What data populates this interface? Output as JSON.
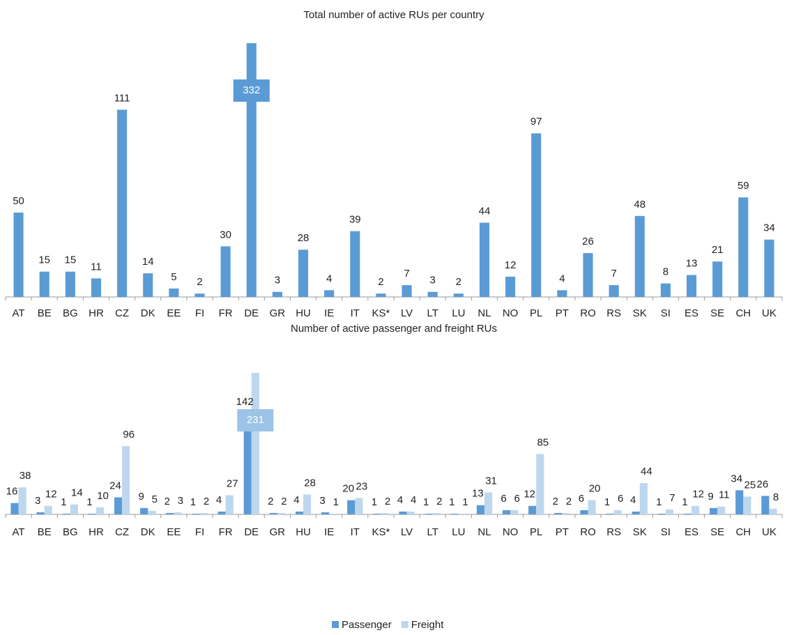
{
  "chart_data": [
    {
      "type": "bar",
      "title": "Total number of active RUs per country",
      "categories": [
        "AT",
        "BE",
        "BG",
        "HR",
        "CZ",
        "DK",
        "EE",
        "FI",
        "FR",
        "DE",
        "GR",
        "HU",
        "IE",
        "IT",
        "KS*",
        "LV",
        "LT",
        "LU",
        "NL",
        "NO",
        "PL",
        "PT",
        "RO",
        "RS",
        "SK",
        "SI",
        "ES",
        "SE",
        "CH",
        "UK"
      ],
      "values": [
        50,
        15,
        15,
        11,
        111,
        14,
        5,
        2,
        30,
        332,
        3,
        28,
        4,
        39,
        2,
        7,
        3,
        2,
        44,
        12,
        97,
        4,
        26,
        7,
        48,
        8,
        13,
        21,
        59,
        34
      ],
      "color": "#5b9bd5"
    },
    {
      "type": "grouped-bar",
      "title": "Number of active passenger and freight RUs",
      "categories": [
        "AT",
        "BE",
        "BG",
        "HR",
        "CZ",
        "DK",
        "EE",
        "FI",
        "FR",
        "DE",
        "GR",
        "HU",
        "IE",
        "IT",
        "KS*",
        "LV",
        "LT",
        "LU",
        "NL",
        "NO",
        "PL",
        "PT",
        "RO",
        "RS",
        "SK",
        "SI",
        "ES",
        "SE",
        "CH",
        "UK"
      ],
      "series": [
        {
          "name": "Passenger",
          "color": "#5b9bd5",
          "values": [
            16,
            3,
            1,
            1,
            24,
            9,
            2,
            1,
            4,
            142,
            2,
            4,
            3,
            20,
            1,
            4,
            1,
            1,
            13,
            6,
            12,
            2,
            6,
            1,
            4,
            1,
            1,
            9,
            34,
            26
          ]
        },
        {
          "name": "Freight",
          "color": "#bdd7ee",
          "values": [
            38,
            12,
            14,
            10,
            96,
            5,
            3,
            2,
            27,
            231,
            2,
            28,
            1,
            23,
            2,
            4,
            2,
            1,
            31,
            6,
            85,
            2,
            20,
            6,
            44,
            7,
            12,
            11,
            25,
            8
          ]
        }
      ],
      "legend": "bottom"
    }
  ]
}
